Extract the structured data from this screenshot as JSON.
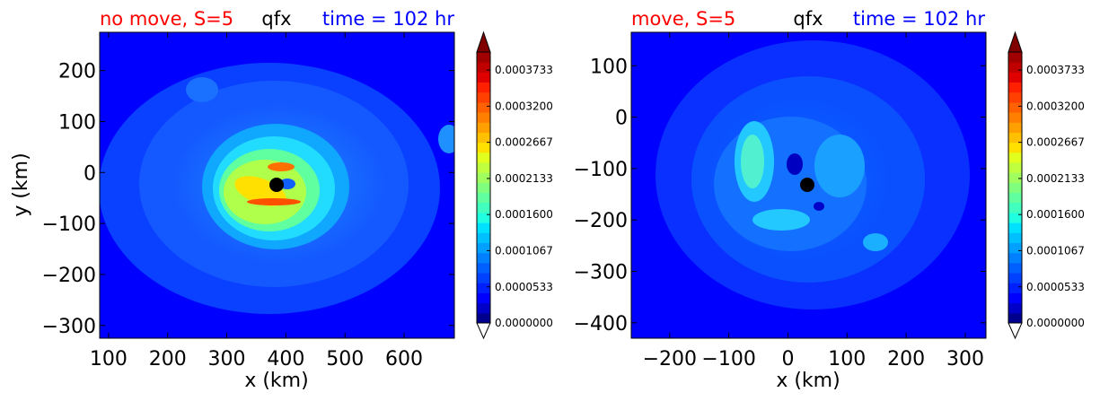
{
  "chart_data": [
    {
      "type": "heatmap",
      "title_left": "no move, S=5",
      "title_center": "qfx",
      "title_right": "time = 102 hr",
      "xlabel": "x (km)",
      "ylabel": "y (km)",
      "xlim": [
        85,
        685
      ],
      "ylim": [
        -325,
        275
      ],
      "xticks": [
        100,
        200,
        300,
        400,
        500,
        600
      ],
      "yticks": [
        200,
        100,
        0,
        -100,
        -200,
        -300
      ],
      "center_marker": {
        "x": 383,
        "y": -27
      },
      "colorbar": {
        "min": 0.0,
        "max": 0.0004,
        "ticks": [
          "0.0000000",
          "0.0000533",
          "0.0001067",
          "0.0001600",
          "0.0002133",
          "0.0002667",
          "0.0003200",
          "0.0003733"
        ]
      }
    },
    {
      "type": "heatmap",
      "title_left": "move, S=5",
      "title_center": "qfx",
      "title_right": "time = 102 hr",
      "xlabel": "x (km)",
      "ylabel": "",
      "xlim": [
        -265,
        335
      ],
      "ylim": [
        -430,
        165
      ],
      "xticks": [
        -200,
        -100,
        0,
        100,
        200,
        300
      ],
      "yticks": [
        100,
        0,
        -100,
        -200,
        -300,
        -400
      ],
      "center_marker": {
        "x": 35,
        "y": -135
      },
      "colorbar": {
        "min": 0.0,
        "max": 0.0004,
        "ticks": [
          "0.0000000",
          "0.0000533",
          "0.0001067",
          "0.0001600",
          "0.0002133",
          "0.0002667",
          "0.0003200",
          "0.0003733"
        ]
      }
    }
  ],
  "colors": {
    "title_left": "#ff0000",
    "title_center": "#000000",
    "title_right": "#0000ff"
  }
}
